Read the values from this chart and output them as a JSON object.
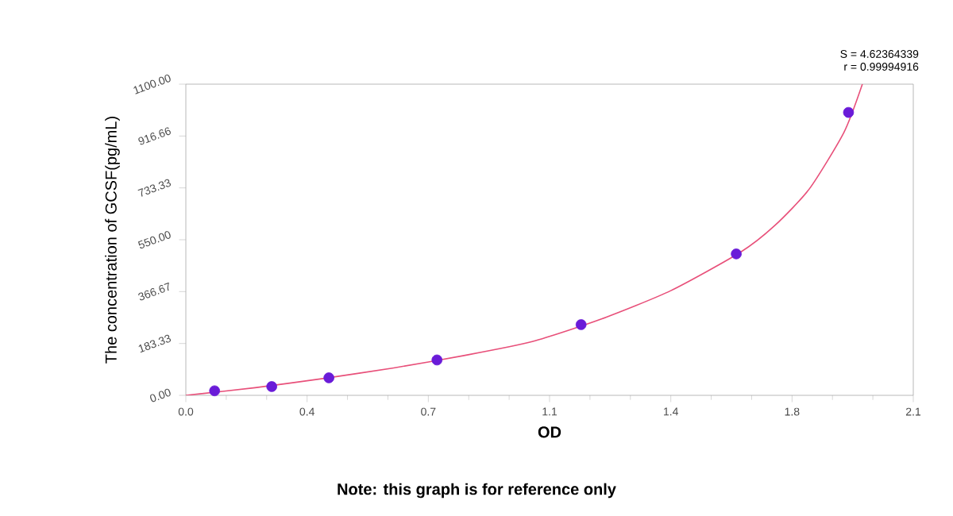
{
  "chart_data": {
    "type": "scatter",
    "xlabel": "OD",
    "ylabel": "The concentration of GCSF(pg/mL)",
    "annotations": [
      "S = 4.62364339",
      "r = 0.99994916",
      "Note: this graph is for reference only"
    ],
    "xlim": [
      0,
      2.1
    ],
    "ylim": [
      0,
      1100
    ],
    "xticks": [
      {
        "value": 0,
        "label": "0.0"
      },
      {
        "value": 0.35,
        "label": "0.4"
      },
      {
        "value": 0.7,
        "label": "0.7"
      },
      {
        "value": 1.05,
        "label": "1.1"
      },
      {
        "value": 1.4,
        "label": "1.4"
      },
      {
        "value": 1.75,
        "label": "1.8"
      },
      {
        "value": 2.1,
        "label": "2.1"
      }
    ],
    "yticks": [
      {
        "value": 0,
        "label": "0.00"
      },
      {
        "value": 183.33,
        "label": "183.33"
      },
      {
        "value": 366.67,
        "label": "366.67"
      },
      {
        "value": 550,
        "label": "550.00"
      },
      {
        "value": 733.33,
        "label": "733.33"
      },
      {
        "value": 916.66,
        "label": "916.66"
      },
      {
        "value": 1100,
        "label": "1100.00"
      }
    ],
    "grid": false,
    "series": [
      {
        "color": "#6a1bd8",
        "marker": "circle",
        "x": [
          0.083,
          0.248,
          0.413,
          0.725,
          1.141,
          1.589,
          1.913
        ],
        "values": [
          16,
          31,
          62,
          125,
          250,
          500,
          1000
        ]
      },
      {
        "type": "line",
        "color": "#e8507a",
        "marker": "none",
        "line_style": "solid",
        "x": [
          0,
          0.2,
          0.4,
          0.6,
          0.8,
          1.0,
          1.2,
          1.4,
          1.6,
          1.7,
          1.8,
          1.9,
          1.953
        ],
        "values": [
          0,
          27,
          60,
          97,
          140,
          190,
          270,
          370,
          505,
          600,
          730,
          930,
          1100
        ]
      }
    ]
  }
}
